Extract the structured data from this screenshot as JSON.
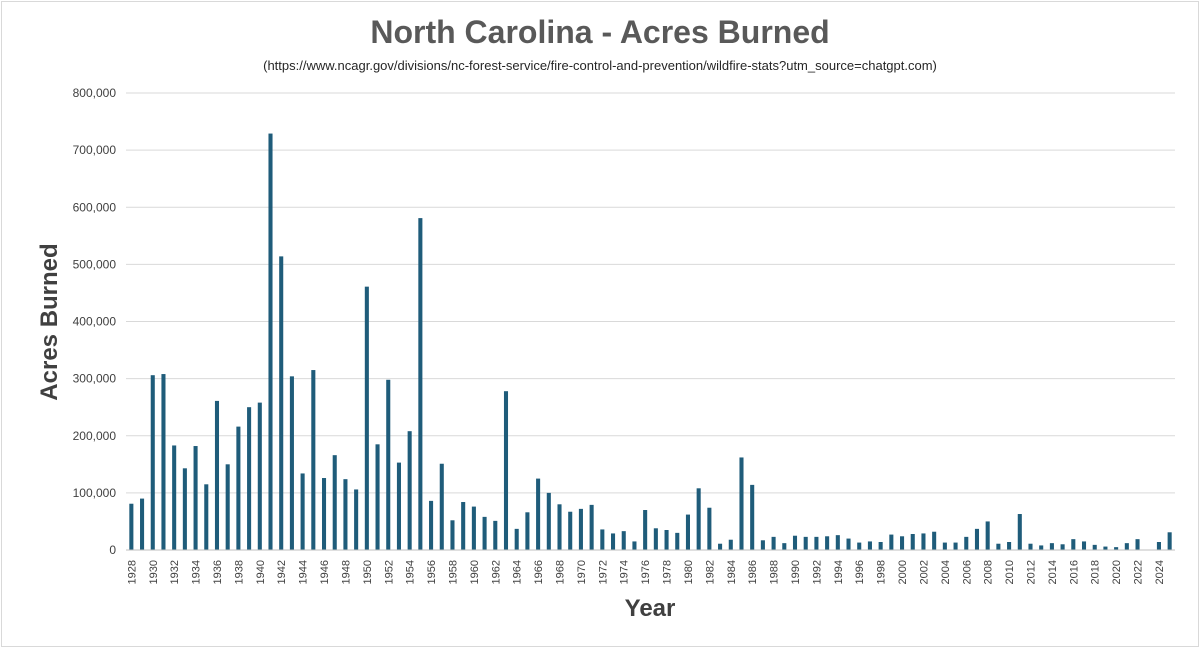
{
  "chart_data": {
    "type": "bar",
    "title": "North Carolina - Acres Burned",
    "subtitle": "(https://www.ncagr.gov/divisions/nc-forest-service/fire-control-and-prevention/wildfire-stats?utm_source=chatgpt.com)",
    "xlabel": "Year",
    "ylabel": "Acres Burned",
    "ylim": [
      0,
      800000
    ],
    "yticks": [
      "0",
      "100,000",
      "200,000",
      "300,000",
      "400,000",
      "500,000",
      "600,000",
      "700,000",
      "800,000"
    ],
    "grid": true,
    "bar_color": "#1f5c7a",
    "categories": [
      1928,
      1929,
      1930,
      1931,
      1932,
      1933,
      1934,
      1935,
      1936,
      1937,
      1938,
      1939,
      1940,
      1941,
      1942,
      1943,
      1944,
      1945,
      1946,
      1947,
      1948,
      1949,
      1950,
      1951,
      1952,
      1953,
      1954,
      1955,
      1956,
      1957,
      1958,
      1959,
      1960,
      1961,
      1962,
      1963,
      1964,
      1965,
      1966,
      1967,
      1968,
      1969,
      1970,
      1971,
      1972,
      1973,
      1974,
      1975,
      1976,
      1977,
      1978,
      1979,
      1980,
      1981,
      1982,
      1983,
      1984,
      1985,
      1986,
      1987,
      1988,
      1989,
      1990,
      1991,
      1992,
      1993,
      1994,
      1995,
      1996,
      1997,
      1998,
      1999,
      2000,
      2001,
      2002,
      2003,
      2004,
      2005,
      2006,
      2007,
      2008,
      2009,
      2010,
      2011,
      2012,
      2013,
      2014,
      2015,
      2016,
      2017,
      2018,
      2019,
      2020,
      2021,
      2022,
      2023,
      2024,
      2025
    ],
    "values": [
      81000,
      90000,
      306000,
      308000,
      183000,
      143000,
      182000,
      115000,
      261000,
      150000,
      216000,
      250000,
      258000,
      729000,
      514000,
      304000,
      134000,
      315000,
      126000,
      166000,
      124000,
      106000,
      461000,
      185000,
      298000,
      153000,
      208000,
      581000,
      86000,
      151000,
      52000,
      84000,
      76000,
      58000,
      51000,
      278000,
      37000,
      66000,
      125000,
      100000,
      80000,
      67000,
      72000,
      79000,
      36000,
      29000,
      33000,
      15000,
      70000,
      38000,
      35000,
      30000,
      62000,
      108000,
      74000,
      11000,
      18000,
      162000,
      114000,
      17000,
      23000,
      12000,
      25000,
      23000,
      23000,
      24000,
      26000,
      20000,
      13000,
      15000,
      14000,
      27000,
      24000,
      28000,
      29000,
      32000,
      13000,
      13000,
      23000,
      37000,
      50000,
      11000,
      14000,
      63000,
      11000,
      8000,
      12000,
      10000,
      19000,
      15000,
      9000,
      6000,
      5000,
      12000,
      19000,
      0,
      14000,
      31000
    ],
    "tick_years": [
      1928,
      1930,
      1932,
      1934,
      1936,
      1938,
      1940,
      1942,
      1944,
      1946,
      1948,
      1950,
      1952,
      1954,
      1956,
      1958,
      1960,
      1962,
      1964,
      1966,
      1968,
      1970,
      1972,
      1974,
      1976,
      1978,
      1980,
      1982,
      1984,
      1986,
      1988,
      1990,
      1992,
      1994,
      1996,
      1998,
      2000,
      2002,
      2004,
      2006,
      2008,
      2010,
      2012,
      2014,
      2016,
      2018,
      2020,
      2022,
      2024
    ]
  }
}
